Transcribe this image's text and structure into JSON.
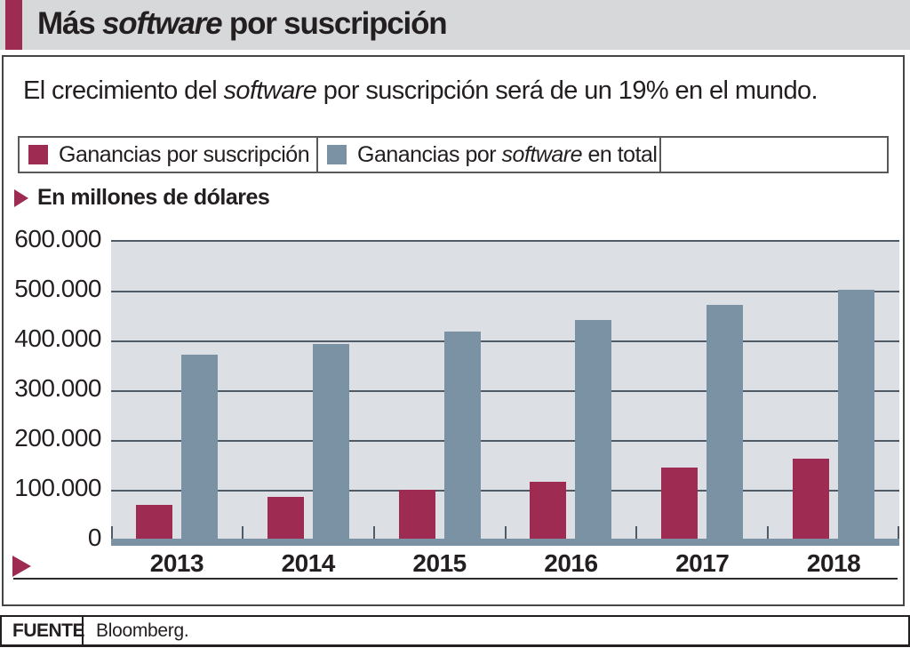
{
  "header": {
    "title": {
      "pre": "Más ",
      "italic": "software",
      "post": " por suscripción"
    }
  },
  "subtitle": {
    "pre": "El crecimiento del ",
    "italic": "software",
    "post": " por suscripción será de un 19% en el mundo."
  },
  "legend": {
    "items": [
      {
        "pre": "Ganancias por suscripción",
        "italic": "",
        "post": "",
        "color": "#9e2b52"
      },
      {
        "pre": "Ganancias por ",
        "italic": "software",
        "post": " en total",
        "color": "#7a92a4"
      }
    ]
  },
  "kicker": {
    "label": "En millones de dólares"
  },
  "chart_data": {
    "type": "bar",
    "title": "Más software por suscripción",
    "subtitle": "El crecimiento del software por suscripción será de un 19% en el mundo.",
    "unit_label": "En millones de dólares",
    "categories": [
      "2013",
      "2014",
      "2015",
      "2016",
      "2017",
      "2018"
    ],
    "series": [
      {
        "name": "Ganancias por suscripción",
        "color": "#9e2b52",
        "values": [
          68000,
          84000,
          99000,
          115000,
          142000,
          161000
        ]
      },
      {
        "name": "Ganancias por software en total",
        "color": "#7a92a4",
        "values": [
          370000,
          391000,
          416000,
          440000,
          470000,
          500000
        ]
      }
    ],
    "ylim": [
      0,
      600000
    ],
    "ytick_step": 100000,
    "ytick_labels": [
      "600.000",
      "500.000",
      "400.000",
      "300.000",
      "200.000",
      "100.000",
      "0"
    ],
    "grid": true,
    "legend_position": "top",
    "plot_bg": "#dce0e4",
    "grid_color": "#4f5b66",
    "baseline_color": "#7a92a4",
    "source": "Bloomberg."
  },
  "source": {
    "label": "FUENTE",
    "value": "Bloomberg."
  }
}
